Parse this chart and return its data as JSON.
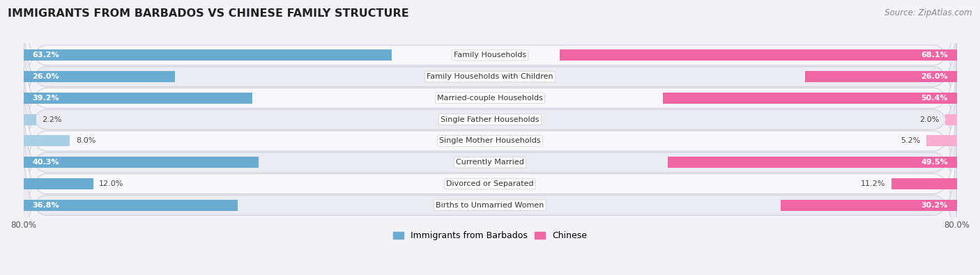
{
  "title": "IMMIGRANTS FROM BARBADOS VS CHINESE FAMILY STRUCTURE",
  "source": "Source: ZipAtlas.com",
  "categories": [
    "Family Households",
    "Family Households with Children",
    "Married-couple Households",
    "Single Father Households",
    "Single Mother Households",
    "Currently Married",
    "Divorced or Separated",
    "Births to Unmarried Women"
  ],
  "barbados_values": [
    63.2,
    26.0,
    39.2,
    2.2,
    8.0,
    40.3,
    12.0,
    36.8
  ],
  "chinese_values": [
    68.1,
    26.0,
    50.4,
    2.0,
    5.2,
    49.5,
    11.2,
    30.2
  ],
  "max_value": 80.0,
  "barbados_color_dark": "#6aabd2",
  "barbados_color_light": "#a8cfe3",
  "chinese_color_dark": "#f066a5",
  "chinese_color_light": "#f9aecf",
  "bar_height": 0.52,
  "bg_color": "#f2f2f7",
  "row_bg_light": "#f8f8fc",
  "row_bg_dark": "#ebebf2",
  "legend_barbados": "Immigrants from Barbados",
  "legend_chinese": "Chinese",
  "title_fontsize": 11.5,
  "source_fontsize": 8.5,
  "label_fontsize": 8.0,
  "cat_fontsize": 8.0
}
